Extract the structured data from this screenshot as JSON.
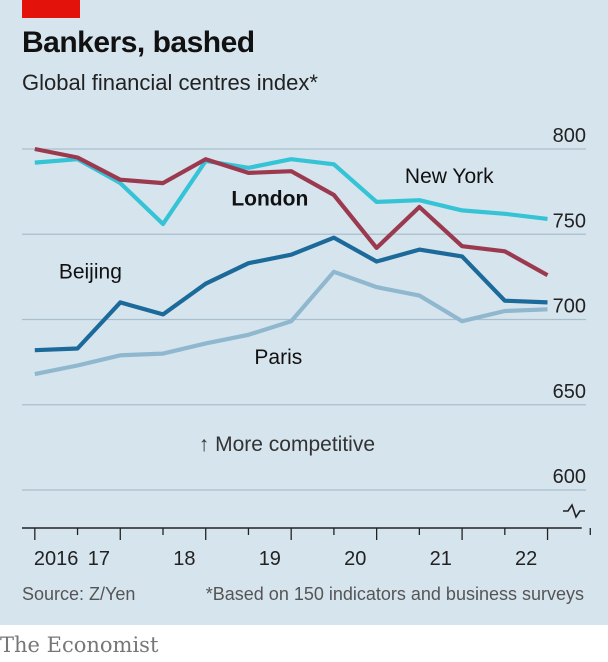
{
  "header": {
    "title": "Bankers, bashed",
    "subtitle": "Global financial centres index*"
  },
  "footer": {
    "source": "Source: Z/Yen",
    "footnote": "*Based on 150 indicators and business surveys",
    "brand": "The Economist"
  },
  "colors": {
    "background": "#d6e4ee",
    "london": "#9b3a4f",
    "new_york": "#35c3d6",
    "beijing": "#1b6a9a",
    "paris": "#8fb8cf",
    "accent": "#e3120b"
  },
  "chart_data": {
    "type": "line",
    "title": "Bankers, bashed",
    "subtitle": "Global financial centres index*",
    "ylim": [
      600,
      800
    ],
    "yticks": [
      {
        "value": 800,
        "label": "800"
      },
      {
        "value": 750,
        "label": "750"
      },
      {
        "value": 700,
        "label": "700"
      },
      {
        "value": 650,
        "label": "650"
      },
      {
        "value": 600,
        "label": "600"
      }
    ],
    "xlim": [
      2015.85,
      2022.45
    ],
    "xticks": [
      2016,
      2016.5,
      2017,
      2017.5,
      2018,
      2018.5,
      2019,
      2019.5,
      2020,
      2020.5,
      2021,
      2021.5,
      2022,
      2022.5
    ],
    "xtick_labels": [
      {
        "x": 2016.25,
        "label": "2016"
      },
      {
        "x": 2016.75,
        "label": "17"
      },
      {
        "x": 2017.75,
        "label": "18"
      },
      {
        "x": 2018.75,
        "label": "19"
      },
      {
        "x": 2019.75,
        "label": "20"
      },
      {
        "x": 2020.75,
        "label": "21"
      },
      {
        "x": 2021.75,
        "label": "22"
      }
    ],
    "x": [
      2016.0,
      2016.5,
      2017.0,
      2017.5,
      2018.0,
      2018.5,
      2019.0,
      2019.5,
      2020.0,
      2020.5,
      2021.0,
      2021.5,
      2022.0
    ],
    "series": [
      {
        "name": "New York",
        "key": "new_york",
        "values": [
          792,
          794,
          780,
          756,
          793,
          789,
          794,
          791,
          769,
          770,
          764,
          762,
          759
        ]
      },
      {
        "name": "London",
        "key": "london",
        "values": [
          800,
          795,
          782,
          780,
          794,
          786,
          787,
          773,
          742,
          766,
          743,
          740,
          726
        ]
      },
      {
        "name": "Beijing",
        "key": "beijing",
        "values": [
          682,
          683,
          710,
          703,
          721,
          733,
          738,
          748,
          734,
          741,
          737,
          711,
          710
        ]
      },
      {
        "name": "Paris",
        "key": "paris",
        "values": [
          668,
          673,
          679,
          680,
          686,
          691,
          699,
          728,
          719,
          714,
          699,
          705,
          706
        ]
      }
    ],
    "series_labels": [
      {
        "key": "new_york",
        "text": "New York",
        "x": 2020.85,
        "y": 780,
        "bold": false
      },
      {
        "key": "london",
        "text": "London",
        "x": 2018.75,
        "y": 767,
        "bold": true
      },
      {
        "key": "beijing",
        "text": "Beijing",
        "x": 2016.65,
        "y": 724,
        "bold": false
      },
      {
        "key": "paris",
        "text": "Paris",
        "x": 2018.85,
        "y": 674,
        "bold": false
      }
    ],
    "annotation": {
      "text": "↑ More competitive",
      "x": 2018.95,
      "y": 623
    },
    "grid": true,
    "axis_break": true
  }
}
